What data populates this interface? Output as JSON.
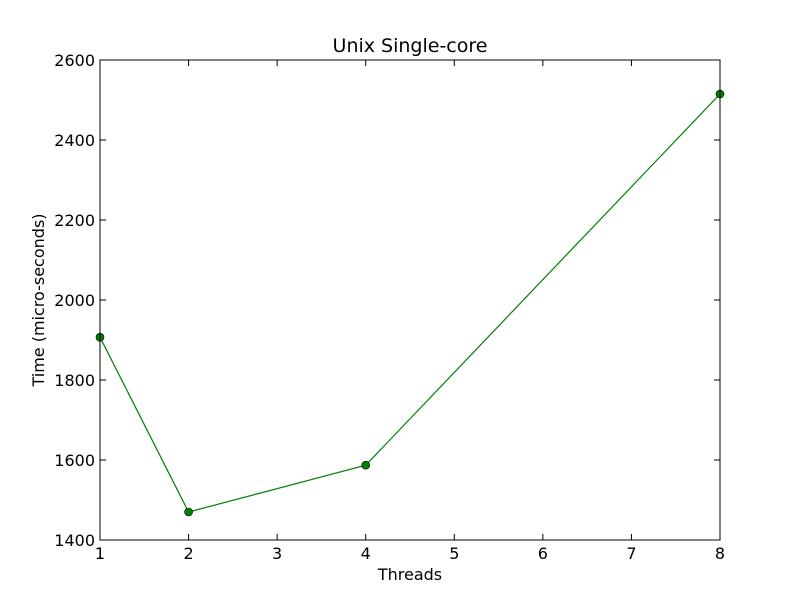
{
  "chart_data": {
    "type": "line",
    "title": "Unix Single-core",
    "xlabel": "Threads",
    "ylabel": "Time (micro-seconds)",
    "xlim": [
      1,
      8
    ],
    "ylim": [
      1400,
      2600
    ],
    "xticks": [
      1,
      2,
      3,
      4,
      5,
      6,
      7,
      8
    ],
    "yticks": [
      1400,
      1600,
      1800,
      2000,
      2200,
      2400,
      2600
    ],
    "grid": false,
    "series": [
      {
        "color": "#008000",
        "marker": "circle",
        "x": [
          1,
          2,
          4,
          8
        ],
        "y": [
          1907,
          1470,
          1587,
          2515
        ]
      }
    ]
  }
}
